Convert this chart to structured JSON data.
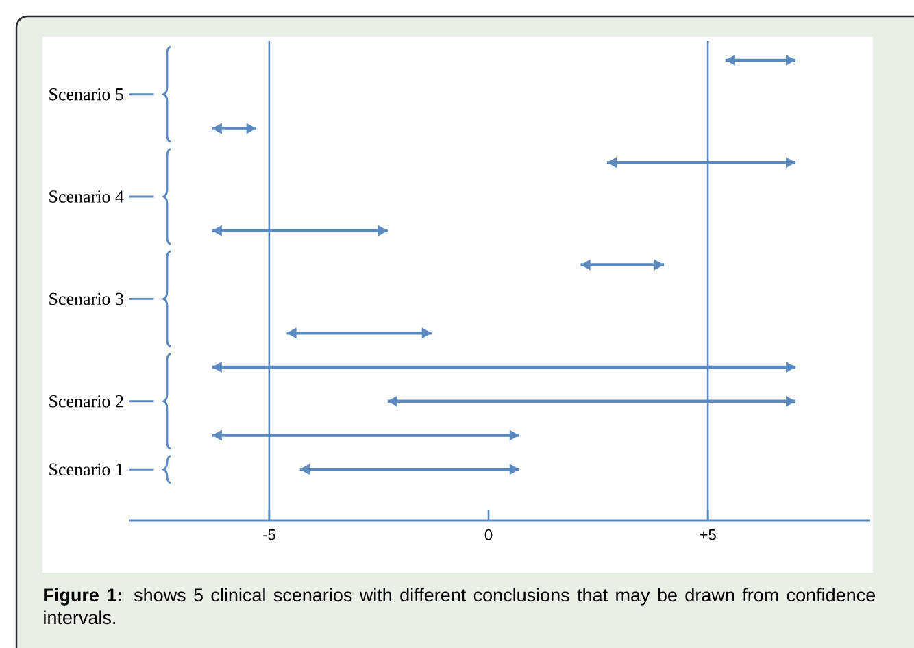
{
  "chart_data": {
    "type": "bar",
    "orientation": "horizontal",
    "categories": [
      null,
      "Scenario 5",
      null,
      null,
      "Scenario 4",
      null,
      null,
      "Scenario 3",
      null,
      null,
      "Scenario 2",
      null,
      "Scenario 1"
    ],
    "base": [
      5.4,
      null,
      -6.3,
      2.7,
      null,
      -6.3,
      2.1,
      null,
      -4.6,
      -6.3,
      -2.3,
      -6.3,
      -4.3
    ],
    "values": [
      1.6,
      null,
      1.0,
      4.3,
      null,
      4.0,
      1.9,
      null,
      3.3,
      13.3,
      9.3,
      7.0,
      5.0
    ],
    "color": "#5b8ac0",
    "xlim": [
      -8.2,
      8.7
    ],
    "xticks": [
      -5,
      0,
      {
        "value": 5,
        "label": "+5"
      }
    ],
    "ref_lines": [
      {
        "axis": "x",
        "value": -5,
        "color": "#5b8ac0"
      },
      {
        "axis": "x",
        "value": 5,
        "color": "#5b8ac0"
      }
    ],
    "annotations": [
      "**Figure 1:** shows 5 clinical scenarios with different conclusions that may be drawn from confidence intervals."
    ]
  }
}
